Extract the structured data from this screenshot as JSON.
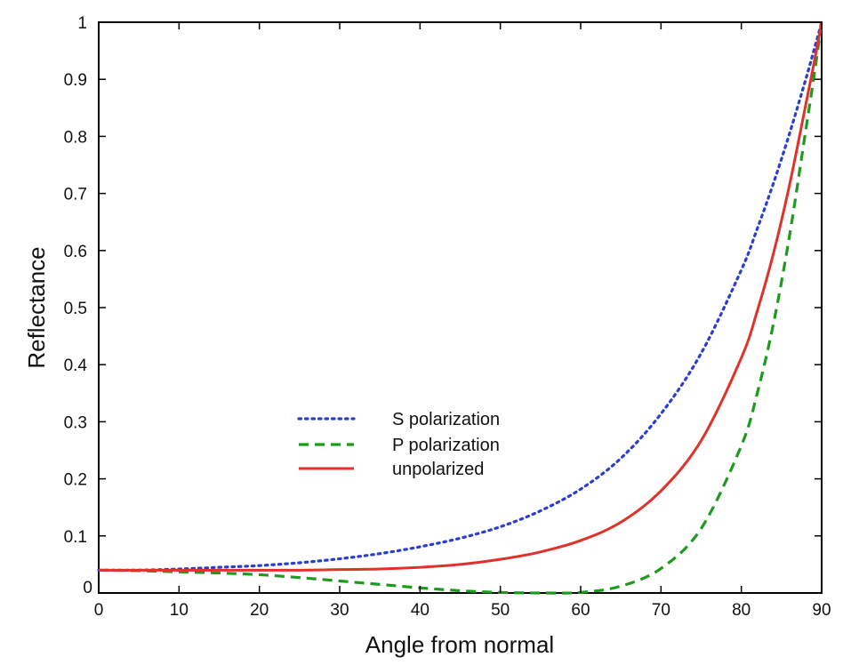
{
  "chart_data": {
    "type": "line",
    "title": "",
    "xlabel": "Angle from normal",
    "ylabel": "Reflectance",
    "xlim": [
      0,
      90
    ],
    "ylim": [
      0,
      1
    ],
    "grid": false,
    "legend_position": "center-left",
    "x_ticks": [
      {
        "value": 0,
        "label": "0"
      },
      {
        "value": 10,
        "label": "10"
      },
      {
        "value": 20,
        "label": "20"
      },
      {
        "value": 30,
        "label": "30"
      },
      {
        "value": 40,
        "label": "40"
      },
      {
        "value": 50,
        "label": "50"
      },
      {
        "value": 60,
        "label": "60"
      },
      {
        "value": 70,
        "label": "70"
      },
      {
        "value": 80,
        "label": "80"
      },
      {
        "value": 90,
        "label": "90"
      }
    ],
    "y_ticks": [
      {
        "value": 0,
        "label": "0"
      },
      {
        "value": 0.1,
        "label": "0.1"
      },
      {
        "value": 0.2,
        "label": "0.2"
      },
      {
        "value": 0.3,
        "label": "0.3"
      },
      {
        "value": 0.4,
        "label": "0.4"
      },
      {
        "value": 0.5,
        "label": "0.5"
      },
      {
        "value": 0.6,
        "label": "0.6"
      },
      {
        "value": 0.7,
        "label": "0.7"
      },
      {
        "value": 0.8,
        "label": "0.8"
      },
      {
        "value": 0.9,
        "label": "0.9"
      },
      {
        "value": 1,
        "label": "1"
      }
    ],
    "x": [
      0,
      5,
      10,
      15,
      20,
      25,
      30,
      35,
      40,
      45,
      50,
      55,
      60,
      65,
      70,
      75,
      80,
      82,
      84,
      86,
      88,
      89,
      90
    ],
    "series": [
      {
        "name": "S polarization",
        "color": "#2a3fd1",
        "style": "dotted",
        "values": [
          0.04,
          0.04,
          0.042,
          0.045,
          0.048,
          0.053,
          0.06,
          0.069,
          0.081,
          0.096,
          0.116,
          0.144,
          0.182,
          0.236,
          0.314,
          0.42,
          0.566,
          0.639,
          0.718,
          0.805,
          0.899,
          0.949,
          1.0
        ]
      },
      {
        "name": "P polarization",
        "color": "#1e9a1e",
        "style": "dashed",
        "values": [
          0.04,
          0.039,
          0.037,
          0.035,
          0.032,
          0.027,
          0.021,
          0.015,
          0.009,
          0.004,
          0.001,
          0.0,
          0.001,
          0.012,
          0.043,
          0.113,
          0.258,
          0.351,
          0.472,
          0.626,
          0.809,
          0.901,
          1.0
        ]
      },
      {
        "name": "unpolarized",
        "color": "#e0322a",
        "style": "solid",
        "values": [
          0.04,
          0.04,
          0.04,
          0.04,
          0.04,
          0.04,
          0.041,
          0.042,
          0.045,
          0.05,
          0.059,
          0.072,
          0.092,
          0.124,
          0.179,
          0.267,
          0.412,
          0.495,
          0.595,
          0.715,
          0.854,
          0.925,
          1.0
        ]
      }
    ]
  }
}
